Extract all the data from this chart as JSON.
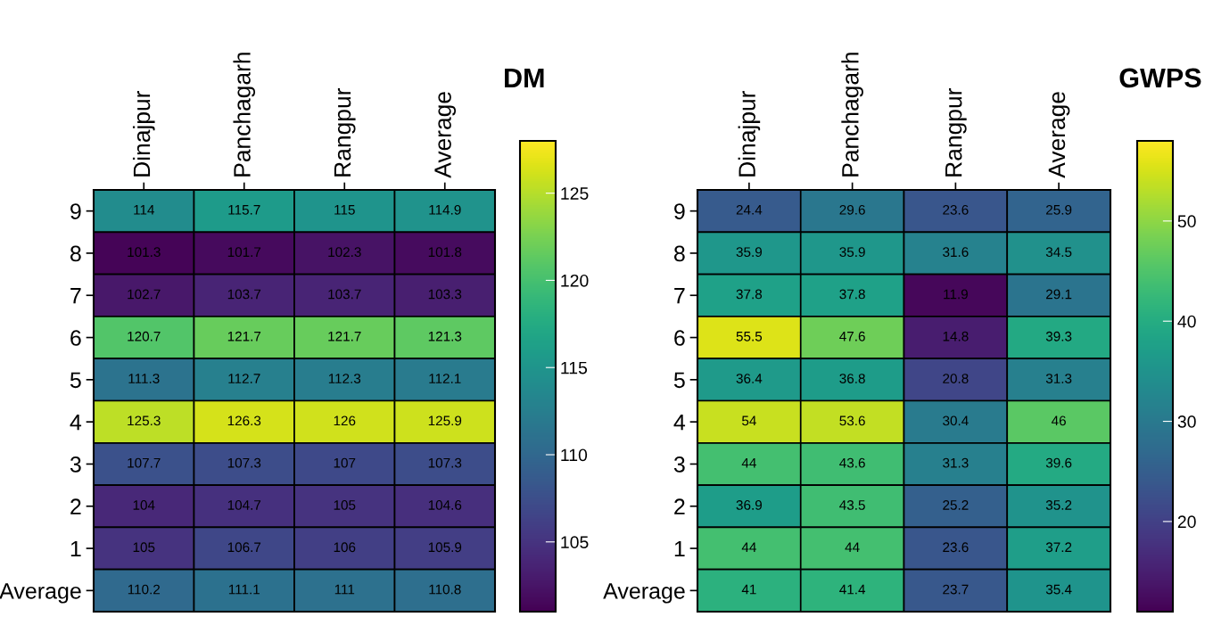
{
  "chart_data": [
    {
      "type": "heatmap",
      "title": "DM",
      "categories": [
        "Dinajpur",
        "Panchagarh",
        "Rangpur",
        "Average"
      ],
      "y_categories": [
        "9",
        "8",
        "7",
        "6",
        "5",
        "4",
        "3",
        "2",
        "1",
        "Average"
      ],
      "cells": [
        [
          114,
          115.7,
          115,
          114.9
        ],
        [
          101.3,
          101.7,
          102.3,
          101.8
        ],
        [
          102.7,
          103.7,
          103.7,
          103.3
        ],
        [
          120.7,
          121.7,
          121.7,
          121.3
        ],
        [
          111.3,
          112.7,
          112.3,
          112.1
        ],
        [
          125.3,
          126.3,
          126,
          125.9
        ],
        [
          107.7,
          107.3,
          107,
          107.3
        ],
        [
          104,
          104.7,
          105,
          104.6
        ],
        [
          105,
          106.7,
          106,
          105.9
        ],
        [
          110.2,
          111.1,
          111,
          110.8
        ]
      ],
      "clim": [
        101,
        128
      ],
      "cticks": [
        105,
        110,
        115,
        120,
        125
      ],
      "data_labels": true
    },
    {
      "type": "heatmap",
      "title": "GWPS",
      "categories": [
        "Dinajpur",
        "Panchagarh",
        "Rangpur",
        "Average"
      ],
      "y_categories": [
        "9",
        "8",
        "7",
        "6",
        "5",
        "4",
        "3",
        "2",
        "1",
        "Average"
      ],
      "cells": [
        [
          24.4,
          29.6,
          23.6,
          25.9
        ],
        [
          35.9,
          35.9,
          31.6,
          34.5
        ],
        [
          37.8,
          37.8,
          11.9,
          29.1
        ],
        [
          55.5,
          47.6,
          14.8,
          39.3
        ],
        [
          36.4,
          36.8,
          20.8,
          31.3
        ],
        [
          54,
          53.6,
          30.4,
          46
        ],
        [
          44,
          43.6,
          31.3,
          39.6
        ],
        [
          36.9,
          43.5,
          25.2,
          35.2
        ],
        [
          44,
          44,
          23.6,
          37.2
        ],
        [
          41,
          41.4,
          23.7,
          35.4
        ]
      ],
      "clim": [
        11,
        58
      ],
      "cticks": [
        20,
        30,
        40,
        50
      ],
      "data_labels": true
    }
  ]
}
